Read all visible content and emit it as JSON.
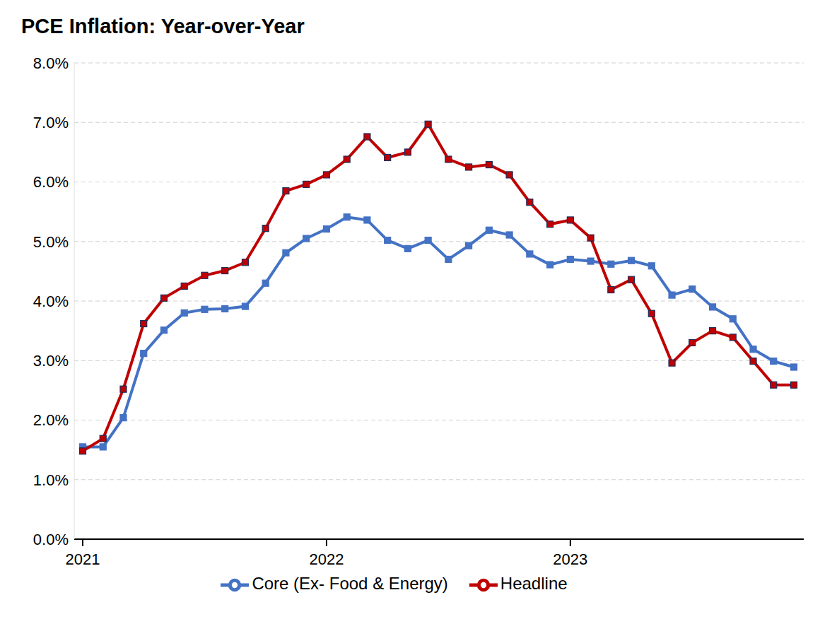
{
  "chart_data": {
    "type": "line",
    "title": "PCE Inflation: Year-over-Year",
    "categories": [
      "2021",
      null,
      null,
      null,
      null,
      null,
      null,
      null,
      null,
      null,
      null,
      null,
      "2022",
      null,
      null,
      null,
      null,
      null,
      null,
      null,
      null,
      null,
      null,
      null,
      "2023",
      null,
      null,
      null,
      null,
      null,
      null,
      null,
      null,
      null,
      null,
      null
    ],
    "series": [
      {
        "name": "Core (Ex- Food & Energy)",
        "color": "#4472c4",
        "marker": "square",
        "values": [
          1.55,
          1.55,
          2.04,
          3.12,
          3.51,
          3.8,
          3.86,
          3.87,
          3.91,
          4.3,
          4.81,
          5.05,
          5.21,
          5.41,
          5.36,
          5.02,
          4.88,
          5.02,
          4.7,
          4.93,
          5.19,
          5.11,
          4.79,
          4.61,
          4.7,
          4.67,
          4.62,
          4.68,
          4.59,
          4.1,
          4.2,
          3.9,
          3.7,
          3.19,
          2.99,
          2.89
        ]
      },
      {
        "name": "Headline",
        "color": "#c00000",
        "marker": "square",
        "values": [
          1.48,
          1.69,
          2.52,
          3.62,
          4.05,
          4.25,
          4.43,
          4.51,
          4.65,
          5.22,
          5.85,
          5.96,
          6.12,
          6.38,
          6.76,
          6.41,
          6.5,
          6.97,
          6.38,
          6.25,
          6.29,
          6.12,
          5.66,
          5.29,
          5.36,
          5.06,
          4.19,
          4.36,
          3.79,
          2.96,
          3.3,
          3.5,
          3.39,
          2.99,
          2.59,
          2.59
        ]
      }
    ],
    "ylim": [
      0,
      8
    ],
    "yticks": [
      {
        "value": 0,
        "label": "0.0%"
      },
      {
        "value": 1,
        "label": "1.0%"
      },
      {
        "value": 2,
        "label": "2.0%"
      },
      {
        "value": 3,
        "label": "3.0%"
      },
      {
        "value": 4,
        "label": "4.0%"
      },
      {
        "value": 5,
        "label": "5.0%"
      },
      {
        "value": 6,
        "label": "6.0%"
      },
      {
        "value": 7,
        "label": "7.0%"
      },
      {
        "value": 8,
        "label": "8.0%"
      }
    ],
    "grid": true,
    "legend": "bottom"
  }
}
